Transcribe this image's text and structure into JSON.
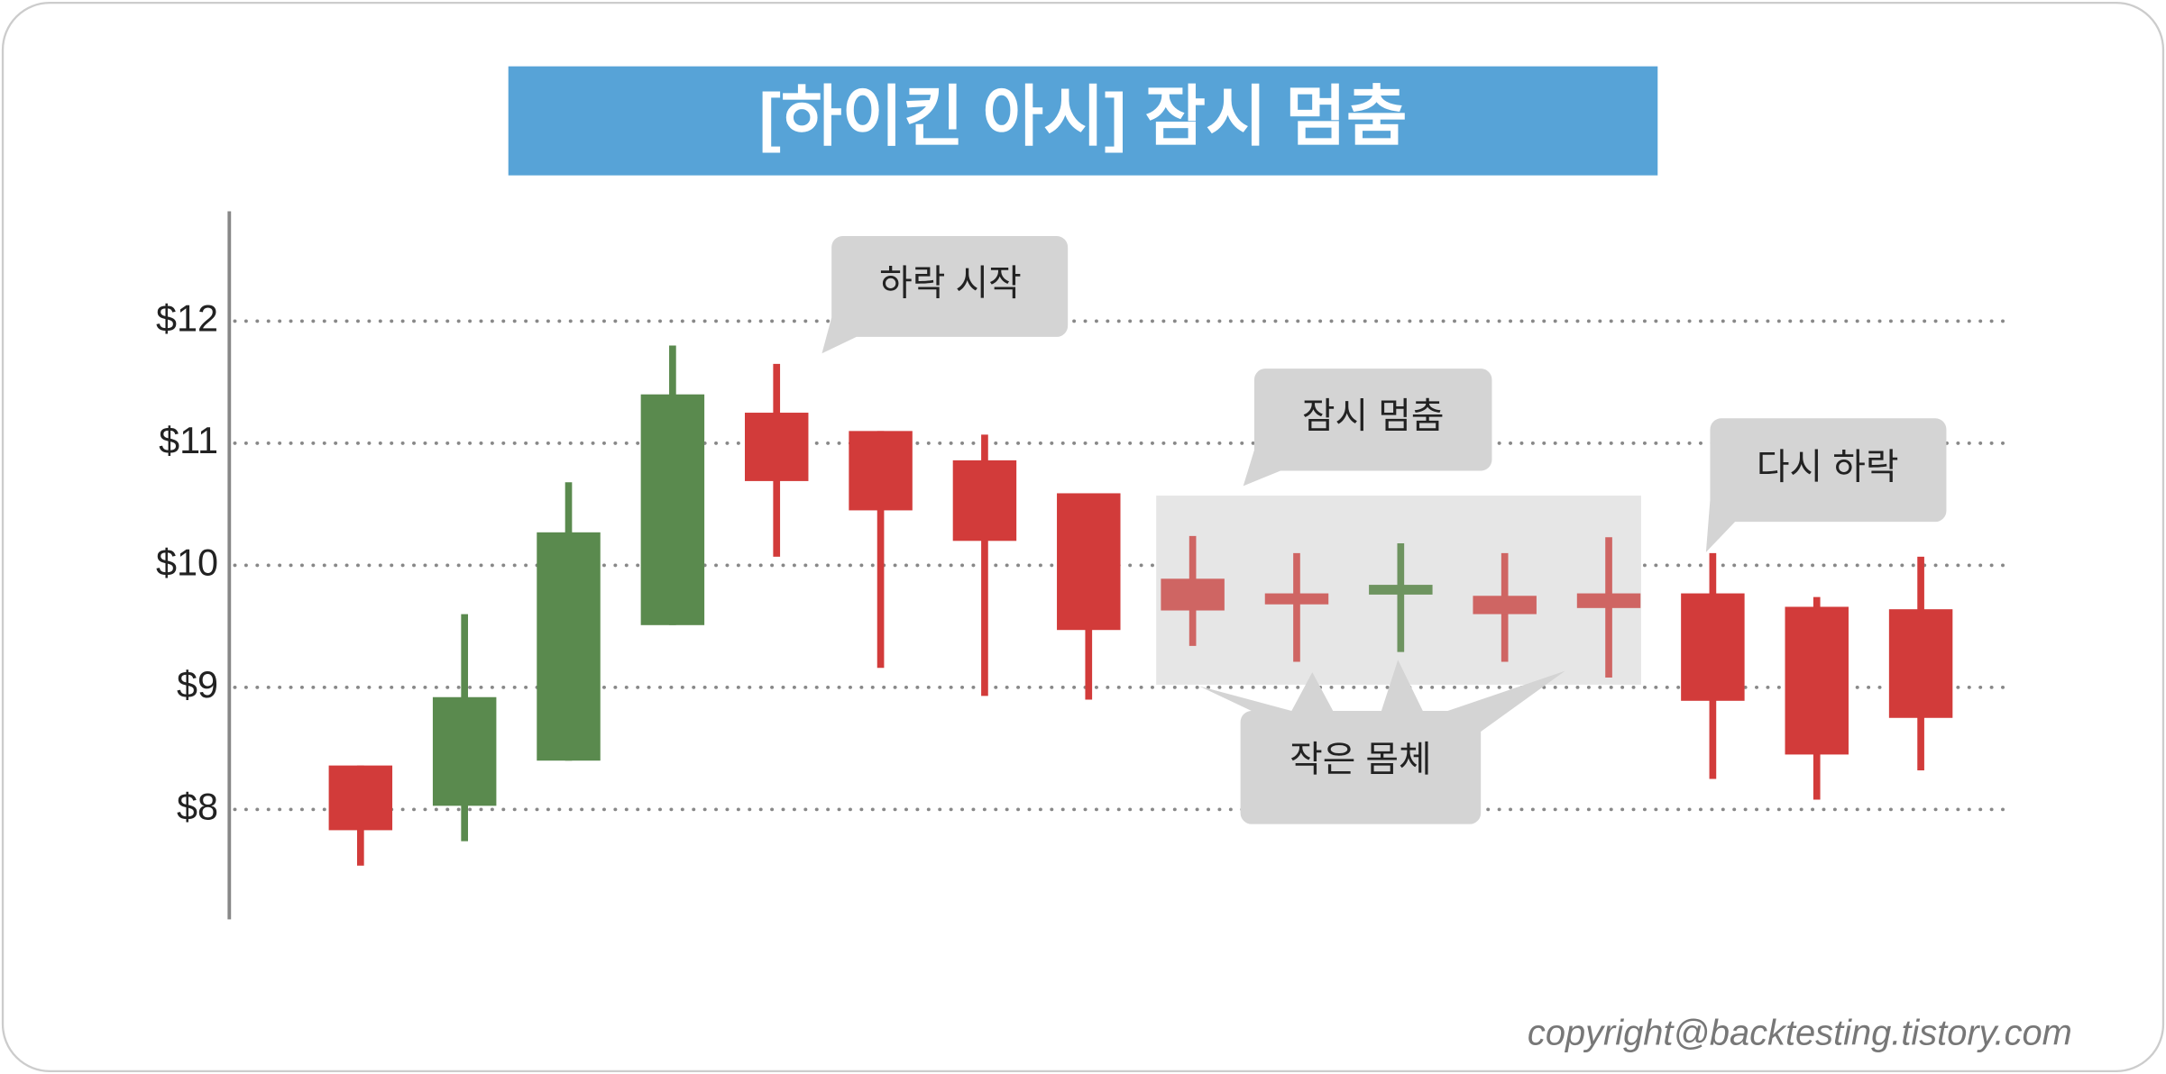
{
  "chart_data": {
    "type": "candlestick",
    "title": "[하이킨 아시] 잠시 멈춤",
    "open": [
      8.36,
      8.03,
      8.4,
      9.51,
      11.25,
      11.1,
      10.86,
      10.59,
      9.89,
      9.77,
      9.76,
      9.75,
      9.77,
      9.77,
      9.66,
      9.64
    ],
    "high": [
      8.36,
      9.6,
      10.68,
      11.8,
      11.65,
      11.1,
      11.07,
      10.59,
      10.24,
      10.1,
      10.18,
      10.1,
      10.23,
      10.1,
      9.74,
      10.07
    ],
    "low": [
      7.54,
      7.74,
      8.4,
      9.51,
      10.07,
      9.16,
      8.93,
      8.9,
      9.34,
      9.21,
      9.29,
      9.21,
      9.08,
      8.25,
      8.08,
      8.32
    ],
    "close": [
      7.83,
      8.92,
      10.27,
      11.4,
      10.69,
      10.45,
      10.2,
      9.47,
      9.63,
      9.68,
      9.84,
      9.6,
      9.65,
      8.89,
      8.45,
      8.75
    ],
    "colors": [
      "#d23b3a",
      "#5a8a4e",
      "#5a8a4e",
      "#5a8a4e",
      "#d23b3a",
      "#d23b3a",
      "#d23b3a",
      "#d23b3a",
      "#cf6563",
      "#cf6563",
      "#6e9460",
      "#cf6563",
      "#cf6563",
      "#d23b3a",
      "#d23b3a",
      "#d23b3a"
    ],
    "ylim": [
      7.1,
      12.9
    ],
    "yticks": [
      {
        "value": 8,
        "label": "$8"
      },
      {
        "value": 9,
        "label": "$9"
      },
      {
        "value": 10,
        "label": "$10"
      },
      {
        "value": 11,
        "label": "$11"
      },
      {
        "value": 12,
        "label": "$12"
      }
    ],
    "grid": true,
    "annotations": [
      "하락 시작",
      "잠시 멈춤",
      "다시 하락",
      "작은 몸체"
    ],
    "footer": "copyright@backtesting.tistory.com"
  }
}
